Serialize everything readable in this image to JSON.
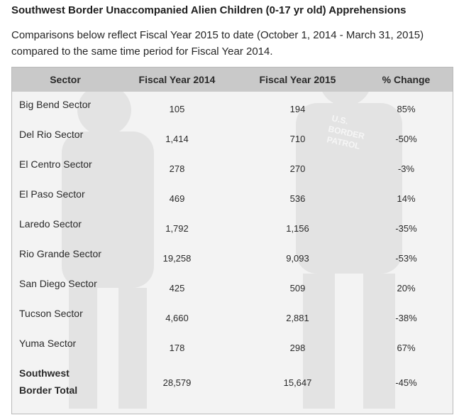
{
  "title": "Southwest Border Unaccompanied Alien Children (0-17 yr old) Apprehensions",
  "intro": "Comparisons below reflect Fiscal Year 2015 to date (October 1, 2014 - March 31, 2015) compared to the same time period for Fiscal Year 2014.",
  "table": {
    "headers": [
      "Sector",
      "Fiscal Year 2014",
      "Fiscal Year 2015",
      "% Change"
    ],
    "rows": [
      {
        "sector": "Big Bend Sector",
        "fy2014": "105",
        "fy2015": "194",
        "change": "85%"
      },
      {
        "sector": "Del Rio Sector",
        "fy2014": "1,414",
        "fy2015": "710",
        "change": "-50%"
      },
      {
        "sector": "El Centro Sector",
        "fy2014": "278",
        "fy2015": "270",
        "change": "-3%"
      },
      {
        "sector": "El Paso Sector",
        "fy2014": "469",
        "fy2015": "536",
        "change": "14%"
      },
      {
        "sector": "Laredo Sector",
        "fy2014": "1,792",
        "fy2015": "1,156",
        "change": "-35%"
      },
      {
        "sector": "Rio Grande Sector",
        "fy2014": "19,258",
        "fy2015": "9,093",
        "change": "-53%"
      },
      {
        "sector": "San Diego Sector",
        "fy2014": "425",
        "fy2015": "509",
        "change": "20%"
      },
      {
        "sector": "Tucson Sector",
        "fy2014": "4,660",
        "fy2015": "2,881",
        "change": "-38%"
      },
      {
        "sector": "Yuma Sector",
        "fy2014": "178",
        "fy2015": "298",
        "change": "67%"
      }
    ],
    "total": {
      "sector_line1": "Southwest",
      "sector_line2": "Border Total",
      "fy2014": "28,579",
      "fy2015": "15,647",
      "change": "-45%"
    }
  },
  "watermark": {
    "text_line1": "U.S.",
    "text_line2": "BORDER",
    "text_line3": "PATROL"
  },
  "colors": {
    "header_bg": "#c9c9c9",
    "table_bg": "#f6f6f6",
    "border": "#b9b9b9"
  }
}
